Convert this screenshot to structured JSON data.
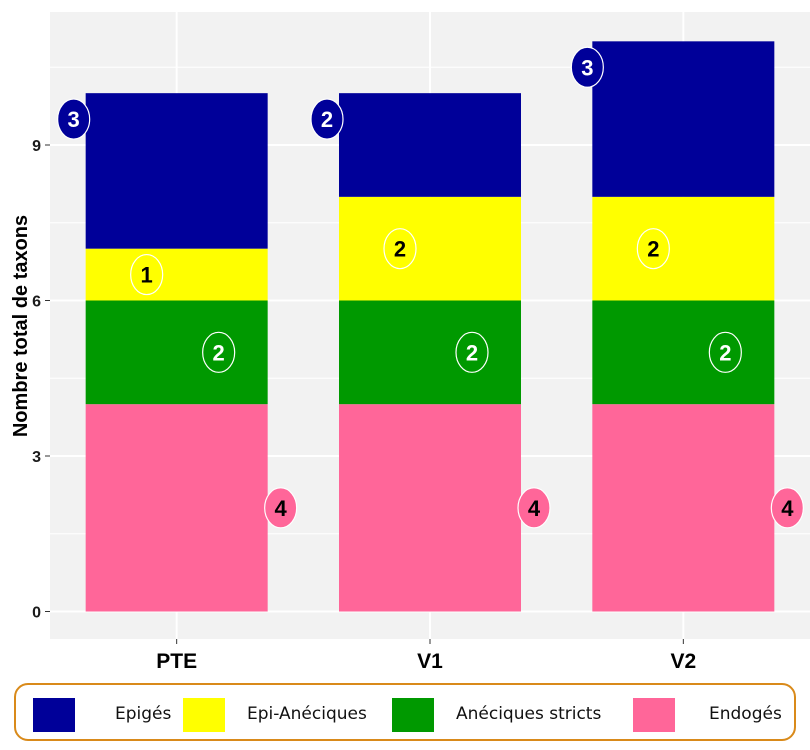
{
  "chart_data": {
    "type": "bar",
    "stacked": true,
    "categories": [
      "PTE",
      "V1",
      "V2"
    ],
    "series": [
      {
        "name": "Endogés",
        "color": "#ff6699",
        "values": [
          4,
          4,
          4
        ],
        "label_color": "#000000"
      },
      {
        "name": "Anéciques stricts",
        "color": "#009900",
        "values": [
          2,
          2,
          2
        ],
        "label_color": "#ffffff"
      },
      {
        "name": "Epi-Anéciques",
        "color": "#ffff00",
        "values": [
          1,
          2,
          2
        ],
        "label_color": "#000000"
      },
      {
        "name": "Epigés",
        "color": "#000099",
        "values": [
          3,
          2,
          3
        ],
        "label_color": "#ffffff"
      }
    ],
    "ylabel": "Nombre total de taxons",
    "xlabel": "",
    "yticks": [
      0,
      3,
      6,
      9
    ],
    "ylim": [
      -0.5,
      11.6
    ],
    "panel_background": "#f2f2f2",
    "grid": true,
    "legend_position": "bottom",
    "legend_order": [
      "Epigés",
      "Epi-Anéciques",
      "Anéciques stricts",
      "Endogés"
    ]
  }
}
